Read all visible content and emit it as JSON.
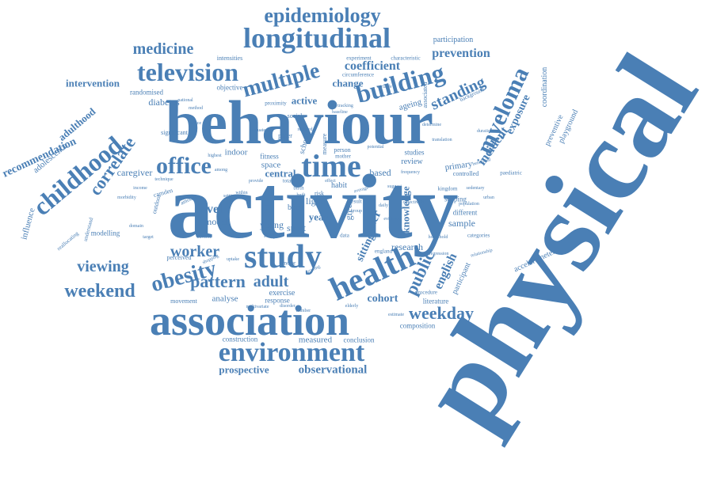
{
  "word_cloud": {
    "color": "#4a7fb5",
    "words": {
      "physical": "physical",
      "activity": "activity",
      "behaviour": "behaviour",
      "association": "association",
      "study": "study",
      "environment": "environment",
      "longitudinal": "longitudinal",
      "epidemiology": "epidemiology",
      "time": "time",
      "health": "health",
      "television": "television",
      "office": "office",
      "building": "building",
      "multiple": "multiple",
      "medicine": "medicine",
      "myeloma": "myeloma",
      "childhood": "childhood",
      "correlate": "correlate",
      "obesity": "obesity",
      "weekend": "weekend",
      "weekday": "weekday",
      "public": "public",
      "pattern": "pattern",
      "adult": "adult",
      "worker": "worker",
      "viewing": "viewing",
      "standing": "standing",
      "prevention": "prevention",
      "participation": "participation",
      "coefficient": "coefficient",
      "intervention": "intervention",
      "recommendation": "recommendation",
      "adulthood": "adulthood",
      "adolescence": "adolescence",
      "influence": "influence",
      "exposure": "exposure",
      "incident": "incident",
      "coordination": "coordination",
      "preventive": "preventive",
      "playground": "playground",
      "english": "english",
      "participant": "participant",
      "accelerometer": "accelerometer",
      "cohort": "cohort",
      "research": "research",
      "knowledge": "knowledge",
      "older": "older",
      "sitting": "sitting",
      "prospective": "prospective",
      "observational": "observational",
      "measured": "measured",
      "conclusion": "conclusion",
      "construction": "construction",
      "composition": "composition",
      "literature": "literature",
      "exercise": "exercise",
      "response": "response",
      "analyse": "analyse",
      "movement": "movement",
      "modelling": "modelling",
      "perceived": "perceived",
      "caregiver": "caregiver",
      "diabetes": "diabetes",
      "randomised": "randomised",
      "objective": "objective",
      "intensities": "intensities",
      "change": "change",
      "active": "active",
      "ageing": "ageing",
      "experiment": "experiment",
      "circumference": "circumference",
      "characteristic": "characteristic",
      "tracking": "tracking",
      "associated": "associated",
      "background": "background",
      "primary": "primary",
      "controlled": "controlled",
      "paediatric": "paediatric",
      "review": "review",
      "studies": "studies",
      "based": "based",
      "central": "central",
      "space": "space",
      "fitness": "fitness",
      "indoor": "indoor",
      "level": "level",
      "model": "model",
      "young": "young",
      "child": "child",
      "body": "body",
      "light": "light",
      "year": "year",
      "sport": "sport",
      "mvpa": "mvpa",
      "green": "green",
      "habit": "habit",
      "sample": "sample",
      "different": "different",
      "scoping": "scoping",
      "kingdom": "kingdom",
      "categories": "categories",
      "camden": "camden",
      "amount": "amount",
      "outdoor": "outdoor",
      "reallocating": "reallocating",
      "understand": "understand",
      "school": "school",
      "measure": "measure",
      "person": "person",
      "mother": "mother",
      "paper": "paper",
      "social": "social",
      "proximity": "proximity",
      "significant": "significant",
      "england": "england",
      "procedure": "procedure",
      "regression": "regression",
      "relationship": "relationship",
      "population": "population",
      "disorder": "disorder",
      "motor": "motor",
      "number": "number",
      "uptake": "uptake",
      "shopping": "shopping",
      "growing": "growing",
      "built": "built",
      "birth": "birth",
      "total": "total",
      "risk": "risk",
      "data": "data",
      "result": "result",
      "group": "group",
      "average": "average",
      "highest": "highest",
      "technique": "technique",
      "national": "national",
      "method": "method",
      "reduce": "reduce",
      "translation": "translation",
      "frequency": "frequency",
      "variable": "variable",
      "baseline": "baseline",
      "evaluate": "evaluate",
      "reduced": "reduced",
      "potential": "potential",
      "duration": "duration",
      "beneficial": "beneficial",
      "determine": "determine",
      "effect": "effect",
      "provide": "provide",
      "setting": "setting",
      "among": "among",
      "within": "within",
      "objectively": "objectively",
      "suggest": "suggest",
      "daily": "daily",
      "evidence": "evidence",
      "household": "household",
      "urban": "urban",
      "sedentary": "sedentary",
      "adverse": "adverse",
      "domain": "domain",
      "target": "target",
      "morbidity": "morbidity",
      "income": "income",
      "multivariate": "multivariate",
      "elderly": "elderly",
      "estimate": "estimate"
    }
  }
}
